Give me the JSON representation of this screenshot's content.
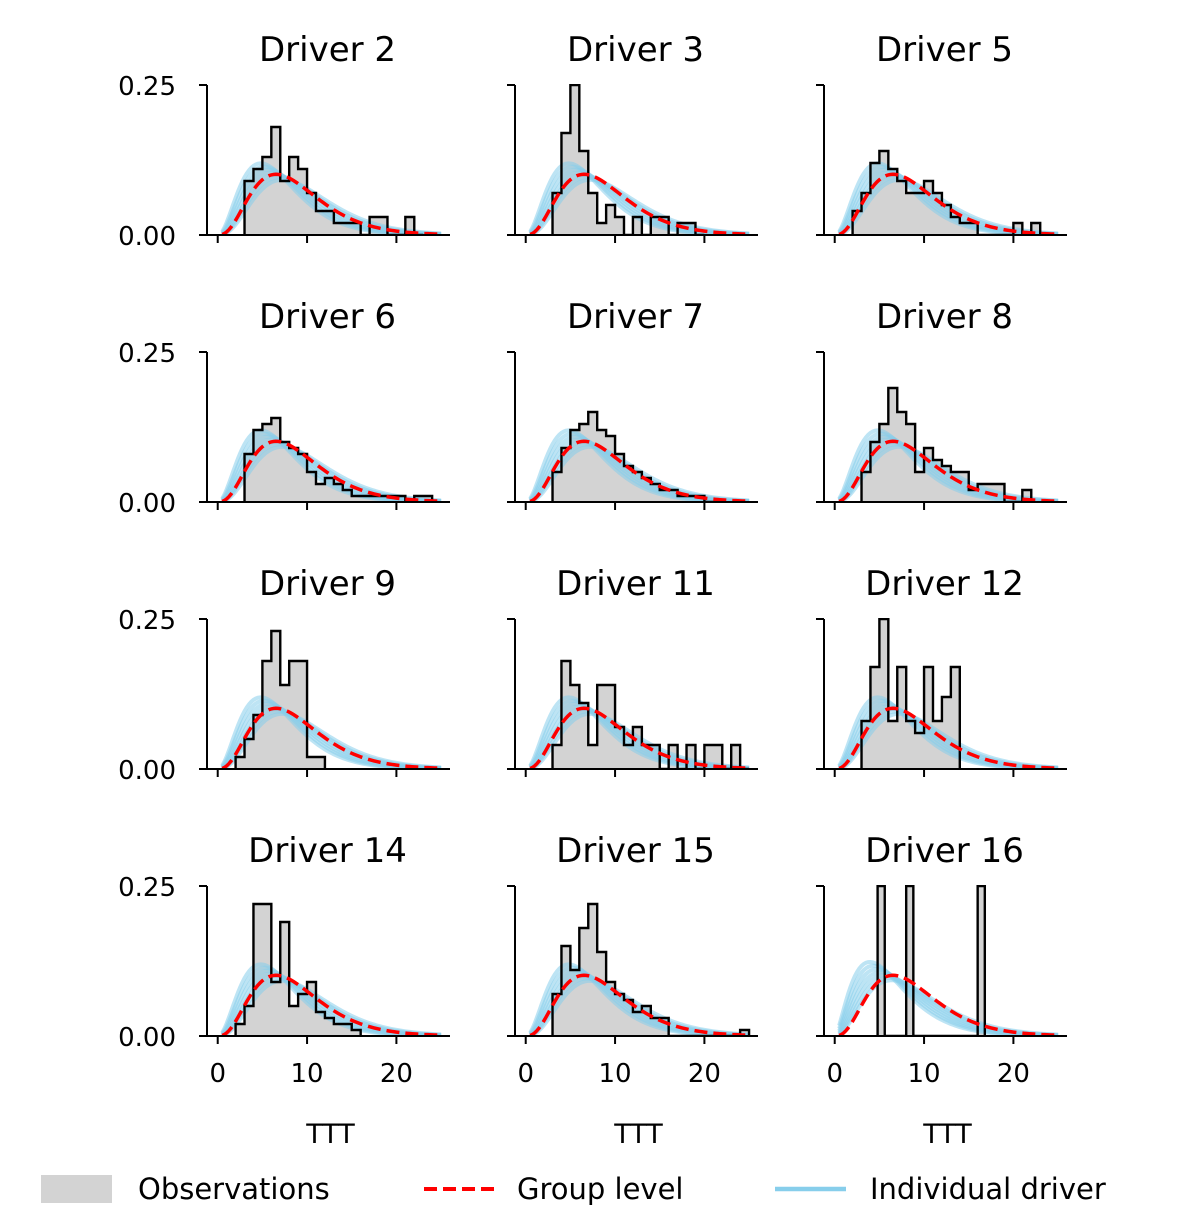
{
  "figure": {
    "legend": {
      "placement": "bottom",
      "entries": [
        {
          "name": "Observations",
          "kind": "patch",
          "color": "#d3d3d3"
        },
        {
          "name": "Group level",
          "kind": "dashed-line",
          "color": "#ff0000"
        },
        {
          "name": "Individual driver",
          "kind": "line",
          "color": "#87ceeb"
        }
      ]
    },
    "colors": {
      "hist_fill": "#d3d3d3",
      "hist_edge": "#000000",
      "group": "#ff0000",
      "individual": "#87ceeb"
    }
  },
  "chart_data": [
    {
      "type": "area",
      "title": "Driver 2",
      "xlabel": "",
      "ylabel": "",
      "xlim": [
        -1.2,
        26
      ],
      "ylim": [
        0,
        0.25
      ],
      "xticks": [
        0,
        10,
        20
      ],
      "yticks": [
        "0.00",
        "0.25"
      ],
      "hist_bins": [
        3,
        4,
        5,
        6,
        7,
        8,
        9,
        10,
        11,
        12,
        13,
        14,
        15,
        16,
        17,
        18,
        19,
        20,
        21,
        22,
        23
      ],
      "hist_values": [
        0.09,
        0.11,
        0.13,
        0.18,
        0.09,
        0.13,
        0.11,
        0.07,
        0.04,
        0.04,
        0.02,
        0.02,
        0.02,
        0.0,
        0.03,
        0.03,
        0.0,
        0.0,
        0.03,
        0.0
      ]
    },
    {
      "type": "area",
      "title": "Driver 3",
      "xlabel": "",
      "ylabel": "",
      "xlim": [
        -1.2,
        26
      ],
      "ylim": [
        0,
        0.25
      ],
      "xticks": [
        0,
        10,
        20
      ],
      "yticks": [
        "0.00",
        "0.25"
      ],
      "hist_bins": [
        3,
        4,
        5,
        6,
        7,
        8,
        9,
        10,
        11,
        12,
        13,
        14,
        15,
        16,
        17,
        18,
        19,
        20
      ],
      "hist_values": [
        0.07,
        0.17,
        0.25,
        0.14,
        0.07,
        0.02,
        0.05,
        0.03,
        0.0,
        0.03,
        0.0,
        0.03,
        0.03,
        0.0,
        0.02,
        0.02,
        0.0
      ]
    },
    {
      "type": "area",
      "title": "Driver 5",
      "xlabel": "",
      "ylabel": "",
      "xlim": [
        -1.2,
        26
      ],
      "ylim": [
        0,
        0.25
      ],
      "xticks": [
        0,
        10,
        20
      ],
      "yticks": [
        "0.00",
        "0.25"
      ],
      "hist_bins": [
        2,
        3,
        4,
        5,
        6,
        7,
        8,
        9,
        10,
        11,
        12,
        13,
        14,
        15,
        16,
        17,
        18,
        19,
        20,
        21,
        22,
        23
      ],
      "hist_values": [
        0.04,
        0.07,
        0.12,
        0.14,
        0.11,
        0.09,
        0.07,
        0.07,
        0.09,
        0.07,
        0.05,
        0.03,
        0.02,
        0.02,
        0.0,
        0.0,
        0.0,
        0.0,
        0.02,
        0.0,
        0.02
      ]
    },
    {
      "type": "area",
      "title": "Driver 6",
      "xlabel": "",
      "ylabel": "",
      "xlim": [
        -1.2,
        26
      ],
      "ylim": [
        0,
        0.25
      ],
      "xticks": [
        0,
        10,
        20
      ],
      "yticks": [
        "0.00",
        "0.25"
      ],
      "hist_bins": [
        3,
        4,
        5,
        6,
        7,
        8,
        9,
        10,
        11,
        12,
        13,
        14,
        15,
        16,
        17,
        18,
        19,
        20,
        21,
        22,
        23,
        24
      ],
      "hist_values": [
        0.08,
        0.12,
        0.13,
        0.14,
        0.1,
        0.09,
        0.08,
        0.05,
        0.03,
        0.04,
        0.03,
        0.02,
        0.01,
        0.01,
        0.01,
        0.01,
        0.01,
        0.01,
        0.0,
        0.01,
        0.01
      ]
    },
    {
      "type": "area",
      "title": "Driver 7",
      "xlabel": "",
      "ylabel": "",
      "xlim": [
        -1.2,
        26
      ],
      "ylim": [
        0,
        0.25
      ],
      "xticks": [
        0,
        10,
        20
      ],
      "yticks": [
        "0.00",
        "0.25"
      ],
      "hist_bins": [
        3,
        4,
        5,
        6,
        7,
        8,
        9,
        10,
        11,
        12,
        13,
        14,
        15,
        16,
        17,
        18,
        19,
        20,
        21,
        22
      ],
      "hist_values": [
        0.05,
        0.09,
        0.12,
        0.13,
        0.15,
        0.12,
        0.11,
        0.08,
        0.06,
        0.05,
        0.04,
        0.03,
        0.02,
        0.02,
        0.01,
        0.01,
        0.01,
        0.0,
        0.0
      ]
    },
    {
      "type": "area",
      "title": "Driver 8",
      "xlabel": "",
      "ylabel": "",
      "xlim": [
        -1.2,
        26
      ],
      "ylim": [
        0,
        0.25
      ],
      "xticks": [
        0,
        10,
        20
      ],
      "yticks": [
        "0.00",
        "0.25"
      ],
      "hist_bins": [
        3,
        4,
        5,
        6,
        7,
        8,
        9,
        10,
        11,
        12,
        13,
        14,
        15,
        16,
        17,
        18,
        19,
        20,
        21,
        22
      ],
      "hist_values": [
        0.05,
        0.1,
        0.13,
        0.19,
        0.15,
        0.13,
        0.05,
        0.09,
        0.07,
        0.06,
        0.05,
        0.05,
        0.02,
        0.03,
        0.03,
        0.03,
        0.0,
        0.0,
        0.02
      ]
    },
    {
      "type": "area",
      "title": "Driver 9",
      "xlabel": "",
      "ylabel": "",
      "xlim": [
        -1.2,
        26
      ],
      "ylim": [
        0,
        0.25
      ],
      "xticks": [
        0,
        10,
        20
      ],
      "yticks": [
        "0.00",
        "0.25"
      ],
      "hist_bins": [
        2,
        3,
        4,
        5,
        6,
        7,
        8,
        9,
        10,
        11,
        12
      ],
      "hist_values": [
        0.02,
        0.05,
        0.09,
        0.18,
        0.23,
        0.14,
        0.18,
        0.18,
        0.02,
        0.02
      ]
    },
    {
      "type": "area",
      "title": "Driver 11",
      "xlabel": "",
      "ylabel": "",
      "xlim": [
        -1.2,
        26
      ],
      "ylim": [
        0,
        0.25
      ],
      "xticks": [
        0,
        10,
        20
      ],
      "yticks": [
        "0.00",
        "0.25"
      ],
      "hist_bins": [
        3,
        4,
        5,
        6,
        7,
        8,
        9,
        10,
        11,
        12,
        13,
        14,
        15,
        16,
        17,
        18,
        19,
        20,
        21,
        22,
        23,
        24,
        25
      ],
      "hist_values": [
        0.04,
        0.18,
        0.14,
        0.11,
        0.04,
        0.14,
        0.14,
        0.07,
        0.04,
        0.07,
        0.04,
        0.04,
        0.0,
        0.04,
        0.0,
        0.04,
        0.0,
        0.04,
        0.04,
        0.0,
        0.04,
        0.0
      ]
    },
    {
      "type": "area",
      "title": "Driver 12",
      "xlabel": "",
      "ylabel": "",
      "xlim": [
        -1.2,
        26
      ],
      "ylim": [
        0,
        0.25
      ],
      "xticks": [
        0,
        10,
        20
      ],
      "yticks": [
        "0.00",
        "0.25"
      ],
      "hist_bins": [
        3,
        4,
        5,
        6,
        7,
        8,
        9,
        10,
        11,
        12,
        13,
        14
      ],
      "hist_values": [
        0.08,
        0.17,
        0.25,
        0.08,
        0.17,
        0.08,
        0.06,
        0.17,
        0.08,
        0.12,
        0.17
      ]
    },
    {
      "type": "area",
      "title": "Driver 14",
      "xlabel": "",
      "ylabel": "",
      "xlim": [
        -1.2,
        26
      ],
      "ylim": [
        0,
        0.25
      ],
      "xticks": [
        0,
        10,
        20
      ],
      "yticks": [
        "0.00",
        "0.25"
      ],
      "hist_bins": [
        2,
        3,
        4,
        5,
        6,
        7,
        8,
        9,
        10,
        11,
        12,
        13,
        14,
        15,
        16
      ],
      "hist_values": [
        0.02,
        0.05,
        0.22,
        0.22,
        0.09,
        0.19,
        0.05,
        0.07,
        0.09,
        0.04,
        0.03,
        0.02,
        0.02,
        0.01
      ]
    },
    {
      "type": "area",
      "title": "Driver 15",
      "xlabel": "",
      "ylabel": "",
      "xlim": [
        -1.2,
        26
      ],
      "ylim": [
        0,
        0.25
      ],
      "xticks": [
        0,
        10,
        20
      ],
      "yticks": [
        "0.00",
        "0.25"
      ],
      "hist_bins": [
        3,
        4,
        5,
        6,
        7,
        8,
        9,
        10,
        11,
        12,
        13,
        14,
        15,
        16,
        17,
        18,
        19,
        20,
        21,
        22,
        23,
        24,
        25
      ],
      "hist_values": [
        0.07,
        0.15,
        0.11,
        0.18,
        0.22,
        0.14,
        0.09,
        0.07,
        0.06,
        0.04,
        0.05,
        0.03,
        0.03,
        0.0,
        0.0,
        0.0,
        0.0,
        0.0,
        0.0,
        0.0,
        0.0,
        0.01
      ]
    },
    {
      "type": "area",
      "title": "Driver 16",
      "xlabel": "",
      "ylabel": "",
      "xlim": [
        -1.2,
        26
      ],
      "ylim": [
        0,
        0.25
      ],
      "xticks": [
        0,
        10,
        20
      ],
      "yticks": [
        "0.00",
        "0.25"
      ],
      "hist_bins": [
        4.8,
        5.6,
        6.4,
        7.2,
        8.0,
        8.8,
        9.6,
        10.4,
        11.2,
        12.0,
        12.8,
        13.6,
        14.4,
        15.2,
        16.0,
        16.8
      ],
      "hist_values": [
        0.25,
        0,
        0,
        0,
        0.25,
        0,
        0,
        0,
        0,
        0,
        0,
        0,
        0,
        0,
        0.25
      ]
    }
  ],
  "axis_label_x": "TTT"
}
